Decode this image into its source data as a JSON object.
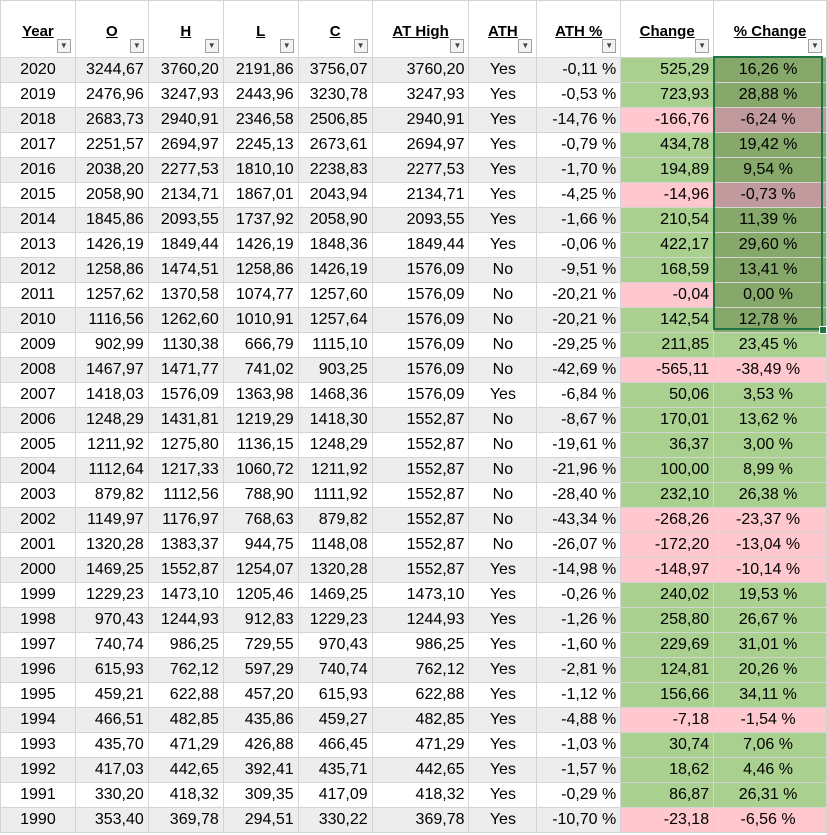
{
  "columns": [
    "Year",
    "O",
    "H",
    "L",
    "C",
    "AT High",
    "ATH",
    "ATH %",
    "Change",
    "% Change"
  ],
  "colors": {
    "positive": "#a9d08e",
    "negative": "#ffc7ce",
    "selected_positive": "#86a86a",
    "selected_negative": "#c09a9d",
    "selection_border": "#217346"
  },
  "filter_icon": "chevron-down-icon",
  "selected_range": "% Change 2020–2010",
  "rows": [
    [
      "2020",
      "3244,67",
      "3760,20",
      "2191,86",
      "3756,07",
      "3760,20",
      "Yes",
      "-0,11 %",
      "525,29",
      "16,26 %"
    ],
    [
      "2019",
      "2476,96",
      "3247,93",
      "2443,96",
      "3230,78",
      "3247,93",
      "Yes",
      "-0,53 %",
      "723,93",
      "28,88 %"
    ],
    [
      "2018",
      "2683,73",
      "2940,91",
      "2346,58",
      "2506,85",
      "2940,91",
      "Yes",
      "-14,76 %",
      "-166,76",
      "-6,24 %"
    ],
    [
      "2017",
      "2251,57",
      "2694,97",
      "2245,13",
      "2673,61",
      "2694,97",
      "Yes",
      "-0,79 %",
      "434,78",
      "19,42 %"
    ],
    [
      "2016",
      "2038,20",
      "2277,53",
      "1810,10",
      "2238,83",
      "2277,53",
      "Yes",
      "-1,70 %",
      "194,89",
      "9,54 %"
    ],
    [
      "2015",
      "2058,90",
      "2134,71",
      "1867,01",
      "2043,94",
      "2134,71",
      "Yes",
      "-4,25 %",
      "-14,96",
      "-0,73 %"
    ],
    [
      "2014",
      "1845,86",
      "2093,55",
      "1737,92",
      "2058,90",
      "2093,55",
      "Yes",
      "-1,66 %",
      "210,54",
      "11,39 %"
    ],
    [
      "2013",
      "1426,19",
      "1849,44",
      "1426,19",
      "1848,36",
      "1849,44",
      "Yes",
      "-0,06 %",
      "422,17",
      "29,60 %"
    ],
    [
      "2012",
      "1258,86",
      "1474,51",
      "1258,86",
      "1426,19",
      "1576,09",
      "No",
      "-9,51 %",
      "168,59",
      "13,41 %"
    ],
    [
      "2011",
      "1257,62",
      "1370,58",
      "1074,77",
      "1257,60",
      "1576,09",
      "No",
      "-20,21 %",
      "-0,04",
      "0,00 %"
    ],
    [
      "2010",
      "1116,56",
      "1262,60",
      "1010,91",
      "1257,64",
      "1576,09",
      "No",
      "-20,21 %",
      "142,54",
      "12,78 %"
    ],
    [
      "2009",
      "902,99",
      "1130,38",
      "666,79",
      "1115,10",
      "1576,09",
      "No",
      "-29,25 %",
      "211,85",
      "23,45 %"
    ],
    [
      "2008",
      "1467,97",
      "1471,77",
      "741,02",
      "903,25",
      "1576,09",
      "No",
      "-42,69 %",
      "-565,11",
      "-38,49 %"
    ],
    [
      "2007",
      "1418,03",
      "1576,09",
      "1363,98",
      "1468,36",
      "1576,09",
      "Yes",
      "-6,84 %",
      "50,06",
      "3,53 %"
    ],
    [
      "2006",
      "1248,29",
      "1431,81",
      "1219,29",
      "1418,30",
      "1552,87",
      "No",
      "-8,67 %",
      "170,01",
      "13,62 %"
    ],
    [
      "2005",
      "1211,92",
      "1275,80",
      "1136,15",
      "1248,29",
      "1552,87",
      "No",
      "-19,61 %",
      "36,37",
      "3,00 %"
    ],
    [
      "2004",
      "1112,64",
      "1217,33",
      "1060,72",
      "1211,92",
      "1552,87",
      "No",
      "-21,96 %",
      "100,00",
      "8,99 %"
    ],
    [
      "2003",
      "879,82",
      "1112,56",
      "788,90",
      "1111,92",
      "1552,87",
      "No",
      "-28,40 %",
      "232,10",
      "26,38 %"
    ],
    [
      "2002",
      "1149,97",
      "1176,97",
      "768,63",
      "879,82",
      "1552,87",
      "No",
      "-43,34 %",
      "-268,26",
      "-23,37 %"
    ],
    [
      "2001",
      "1320,28",
      "1383,37",
      "944,75",
      "1148,08",
      "1552,87",
      "No",
      "-26,07 %",
      "-172,20",
      "-13,04 %"
    ],
    [
      "2000",
      "1469,25",
      "1552,87",
      "1254,07",
      "1320,28",
      "1552,87",
      "Yes",
      "-14,98 %",
      "-148,97",
      "-10,14 %"
    ],
    [
      "1999",
      "1229,23",
      "1473,10",
      "1205,46",
      "1469,25",
      "1473,10",
      "Yes",
      "-0,26 %",
      "240,02",
      "19,53 %"
    ],
    [
      "1998",
      "970,43",
      "1244,93",
      "912,83",
      "1229,23",
      "1244,93",
      "Yes",
      "-1,26 %",
      "258,80",
      "26,67 %"
    ],
    [
      "1997",
      "740,74",
      "986,25",
      "729,55",
      "970,43",
      "986,25",
      "Yes",
      "-1,60 %",
      "229,69",
      "31,01 %"
    ],
    [
      "1996",
      "615,93",
      "762,12",
      "597,29",
      "740,74",
      "762,12",
      "Yes",
      "-2,81 %",
      "124,81",
      "20,26 %"
    ],
    [
      "1995",
      "459,21",
      "622,88",
      "457,20",
      "615,93",
      "622,88",
      "Yes",
      "-1,12 %",
      "156,66",
      "34,11 %"
    ],
    [
      "1994",
      "466,51",
      "482,85",
      "435,86",
      "459,27",
      "482,85",
      "Yes",
      "-4,88 %",
      "-7,18",
      "-1,54 %"
    ],
    [
      "1993",
      "435,70",
      "471,29",
      "426,88",
      "466,45",
      "471,29",
      "Yes",
      "-1,03 %",
      "30,74",
      "7,06 %"
    ],
    [
      "1992",
      "417,03",
      "442,65",
      "392,41",
      "435,71",
      "442,65",
      "Yes",
      "-1,57 %",
      "18,62",
      "4,46 %"
    ],
    [
      "1991",
      "330,20",
      "418,32",
      "309,35",
      "417,09",
      "418,32",
      "Yes",
      "-0,29 %",
      "86,87",
      "26,31 %"
    ],
    [
      "1990",
      "353,40",
      "369,78",
      "294,51",
      "330,22",
      "369,78",
      "Yes",
      "-10,70 %",
      "-23,18",
      "-6,56 %"
    ]
  ]
}
